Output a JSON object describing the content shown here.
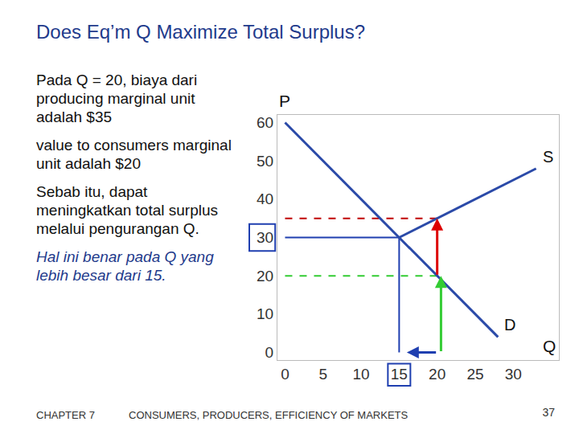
{
  "slide": {
    "title": "Does Eq’m Q Maximize Total Surplus?",
    "paragraphs": [
      "Pada Q = 20, biaya dari producing marginal unit adalah $35",
      "value to consumers marginal unit adalah $20",
      "Sebab itu, dapat meningkatkan total surplus melalui pengurangan Q.",
      "Hal ini benar pada Q yang lebih besar dari 15."
    ],
    "footer": {
      "chapter": "CHAPTER 7",
      "text": "CONSUMERS, PRODUCERS, EFFICIENCY OF MARKETS",
      "page": "37"
    }
  },
  "chart_data": {
    "type": "line",
    "x_label": "Q",
    "y_label": "P",
    "xlim": [
      -1,
      36
    ],
    "ylim": [
      -2,
      62
    ],
    "xticks": [
      0,
      5,
      10,
      15,
      20,
      25,
      30
    ],
    "yticks": [
      0,
      10,
      20,
      30,
      40,
      50,
      60
    ],
    "grid": false,
    "series": [
      {
        "name": "D",
        "color": "#2b4aa8",
        "x": [
          0,
          28
        ],
        "values": [
          60,
          4
        ]
      },
      {
        "name": "S",
        "color": "#2b4aa8",
        "x": [
          15,
          33
        ],
        "values": [
          30,
          48
        ]
      }
    ],
    "reference_lines": [
      {
        "x": [
          0,
          20
        ],
        "values": [
          35,
          35
        ],
        "color": "#c00000",
        "line_style": "dashed"
      },
      {
        "x": [
          0,
          20
        ],
        "values": [
          20,
          20
        ],
        "color": "#33cc33",
        "line_style": "dashed"
      },
      {
        "x": [
          0,
          15
        ],
        "values": [
          30,
          30
        ],
        "color": "#1f3fb0",
        "line_style": "solid"
      },
      {
        "x": [
          15,
          15
        ],
        "values": [
          0,
          30
        ],
        "color": "#1f3fb0",
        "line_style": "solid"
      }
    ],
    "arrows": [
      {
        "from": [
          20,
          20
        ],
        "to": [
          20,
          35
        ],
        "color": "#dd0000"
      },
      {
        "from": [
          20.5,
          0
        ],
        "to": [
          20.5,
          20
        ],
        "color": "#33cc33"
      },
      {
        "from": [
          20,
          0
        ],
        "to": [
          16,
          0
        ],
        "color": "#1f3fb0"
      }
    ],
    "highlighted_ticks": {
      "x": [
        15
      ],
      "y": [
        30
      ]
    }
  }
}
